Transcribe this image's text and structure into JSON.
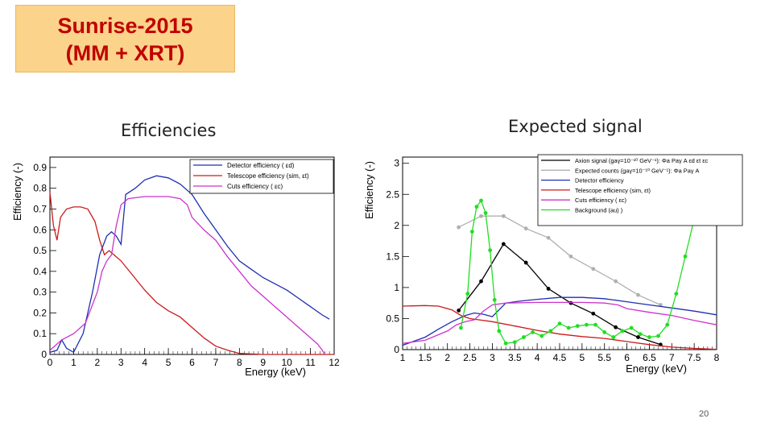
{
  "slide": {
    "title_line1": "Sunrise-2015",
    "title_line2": "(MM + XRT)",
    "caption_left": "Efficiencies",
    "caption_right": "Expected signal",
    "page_number": "20"
  },
  "chart_data": [
    {
      "type": "line",
      "ylabel": "Efficiency (-)",
      "xlabel": "Energy (keV)",
      "xlim": [
        0,
        12
      ],
      "ylim": [
        0,
        0.95
      ],
      "xticks": [
        "0",
        "1",
        "2",
        "3",
        "4",
        "5",
        "6",
        "7",
        "8",
        "9",
        "10",
        "11",
        "12"
      ],
      "yticks": [
        "0",
        "0.1",
        "0.2",
        "0.3",
        "0.4",
        "0.5",
        "0.6",
        "0.7",
        "0.8",
        "0.9"
      ],
      "legend_position": "top-right",
      "series": [
        {
          "name": "Detector efficiency ( εd)",
          "color": "#1f2fb0",
          "points": [
            [
              0,
              0.01
            ],
            [
              0.3,
              0.02
            ],
            [
              0.5,
              0.07
            ],
            [
              0.7,
              0.03
            ],
            [
              1.0,
              0.01
            ],
            [
              1.4,
              0.1
            ],
            [
              1.8,
              0.3
            ],
            [
              2.1,
              0.48
            ],
            [
              2.4,
              0.57
            ],
            [
              2.6,
              0.59
            ],
            [
              2.8,
              0.57
            ],
            [
              3.0,
              0.53
            ],
            [
              3.2,
              0.77
            ],
            [
              3.6,
              0.8
            ],
            [
              4.0,
              0.84
            ],
            [
              4.5,
              0.86
            ],
            [
              5.0,
              0.85
            ],
            [
              5.5,
              0.82
            ],
            [
              6.0,
              0.77
            ],
            [
              6.5,
              0.68
            ],
            [
              7.0,
              0.6
            ],
            [
              7.5,
              0.52
            ],
            [
              8.0,
              0.45
            ],
            [
              8.5,
              0.41
            ],
            [
              9.0,
              0.37
            ],
            [
              9.5,
              0.34
            ],
            [
              10.0,
              0.31
            ],
            [
              10.5,
              0.27
            ],
            [
              11.0,
              0.23
            ],
            [
              11.5,
              0.19
            ],
            [
              11.8,
              0.17
            ]
          ]
        },
        {
          "name": "Telescope efficiency (sim,  εt)",
          "color": "#cc1a1a",
          "points": [
            [
              0,
              0.78
            ],
            [
              0.15,
              0.62
            ],
            [
              0.3,
              0.55
            ],
            [
              0.45,
              0.66
            ],
            [
              0.7,
              0.7
            ],
            [
              1.0,
              0.71
            ],
            [
              1.3,
              0.71
            ],
            [
              1.6,
              0.7
            ],
            [
              1.9,
              0.64
            ],
            [
              2.1,
              0.55
            ],
            [
              2.3,
              0.48
            ],
            [
              2.5,
              0.5
            ],
            [
              2.7,
              0.48
            ],
            [
              3.0,
              0.45
            ],
            [
              3.5,
              0.38
            ],
            [
              4.0,
              0.31
            ],
            [
              4.5,
              0.25
            ],
            [
              5.0,
              0.21
            ],
            [
              5.5,
              0.18
            ],
            [
              6.0,
              0.13
            ],
            [
              6.5,
              0.08
            ],
            [
              7.0,
              0.04
            ],
            [
              7.5,
              0.02
            ],
            [
              8.0,
              0.005
            ],
            [
              9.0,
              0.0
            ],
            [
              12.0,
              0.0
            ]
          ]
        },
        {
          "name": "Cuts efficiency ( εc)",
          "color": "#cc33cc",
          "points": [
            [
              0,
              0.02
            ],
            [
              0.5,
              0.07
            ],
            [
              1.0,
              0.1
            ],
            [
              1.5,
              0.15
            ],
            [
              2.0,
              0.3
            ],
            [
              2.2,
              0.4
            ],
            [
              2.4,
              0.45
            ],
            [
              2.6,
              0.48
            ],
            [
              2.8,
              0.62
            ],
            [
              3.0,
              0.72
            ],
            [
              3.3,
              0.75
            ],
            [
              4.0,
              0.76
            ],
            [
              5.0,
              0.76
            ],
            [
              5.5,
              0.75
            ],
            [
              5.8,
              0.72
            ],
            [
              6.0,
              0.66
            ],
            [
              6.5,
              0.6
            ],
            [
              7.0,
              0.55
            ],
            [
              7.5,
              0.47
            ],
            [
              8.0,
              0.4
            ],
            [
              8.5,
              0.33
            ],
            [
              9.0,
              0.28
            ],
            [
              9.5,
              0.23
            ],
            [
              10.0,
              0.18
            ],
            [
              10.5,
              0.13
            ],
            [
              11.0,
              0.08
            ],
            [
              11.3,
              0.05
            ],
            [
              11.5,
              0.02
            ],
            [
              11.6,
              0.0
            ]
          ]
        }
      ]
    },
    {
      "type": "line",
      "ylabel": "Efficiency (-)",
      "xlabel": "Energy (keV)",
      "xlim": [
        1,
        8
      ],
      "ylim": [
        0,
        3.1
      ],
      "xticks": [
        "1",
        "1.5",
        "2",
        "2.5",
        "3",
        "3.5",
        "4",
        "4.5",
        "5",
        "5.5",
        "6",
        "6.5",
        "7",
        "7.5",
        "8"
      ],
      "yticks": [
        "0",
        "0.5",
        "1",
        "1.5",
        "2",
        "2.5",
        "3"
      ],
      "legend_position": "top-right",
      "series": [
        {
          "name": "Axion signal (gaγ=10⁻¹⁰ GeV⁻¹): Φa Paγ A εd εt εc",
          "color": "#000000",
          "markers": true,
          "points": [
            [
              2.25,
              0.63
            ],
            [
              2.75,
              1.1
            ],
            [
              3.25,
              1.7
            ],
            [
              3.75,
              1.4
            ],
            [
              4.25,
              0.98
            ],
            [
              4.75,
              0.75
            ],
            [
              5.25,
              0.58
            ],
            [
              5.75,
              0.36
            ],
            [
              6.25,
              0.2
            ],
            [
              6.75,
              0.08
            ]
          ]
        },
        {
          "name": "Expected counts (gaγ=10⁻¹⁰ GeV⁻¹): Φa Paγ A",
          "color": "#b0b0b0",
          "markers": true,
          "points": [
            [
              2.25,
              1.97
            ],
            [
              2.75,
              2.15
            ],
            [
              3.25,
              2.15
            ],
            [
              3.75,
              1.95
            ],
            [
              4.25,
              1.8
            ],
            [
              4.75,
              1.5
            ],
            [
              5.25,
              1.3
            ],
            [
              5.75,
              1.1
            ],
            [
              6.25,
              0.88
            ],
            [
              6.75,
              0.72
            ]
          ]
        },
        {
          "name": "Detector efficiency",
          "color": "#1f2fb0",
          "points": [
            [
              1.0,
              0.07
            ],
            [
              1.5,
              0.2
            ],
            [
              1.8,
              0.33
            ],
            [
              2.1,
              0.45
            ],
            [
              2.4,
              0.55
            ],
            [
              2.6,
              0.59
            ],
            [
              2.8,
              0.57
            ],
            [
              3.0,
              0.53
            ],
            [
              3.3,
              0.75
            ],
            [
              3.6,
              0.78
            ],
            [
              4.0,
              0.81
            ],
            [
              4.5,
              0.84
            ],
            [
              5.0,
              0.84
            ],
            [
              5.5,
              0.82
            ],
            [
              6.0,
              0.77
            ],
            [
              6.5,
              0.72
            ],
            [
              7.0,
              0.67
            ],
            [
              7.5,
              0.62
            ],
            [
              8.0,
              0.56
            ]
          ]
        },
        {
          "name": "Telescope efficiency (sim,   εt)",
          "color": "#cc1a1a",
          "points": [
            [
              1.0,
              0.7
            ],
            [
              1.5,
              0.71
            ],
            [
              1.8,
              0.7
            ],
            [
              2.1,
              0.64
            ],
            [
              2.3,
              0.55
            ],
            [
              2.5,
              0.5
            ],
            [
              2.7,
              0.48
            ],
            [
              3.0,
              0.45
            ],
            [
              3.5,
              0.38
            ],
            [
              4.0,
              0.31
            ],
            [
              4.5,
              0.25
            ],
            [
              5.0,
              0.21
            ],
            [
              5.5,
              0.18
            ],
            [
              6.0,
              0.13
            ],
            [
              6.5,
              0.08
            ],
            [
              7.0,
              0.04
            ],
            [
              7.5,
              0.02
            ],
            [
              8.0,
              0.005
            ]
          ]
        },
        {
          "name": "Cuts efficiency ( εc)",
          "color": "#cc33cc",
          "points": [
            [
              1.0,
              0.1
            ],
            [
              1.5,
              0.15
            ],
            [
              2.0,
              0.3
            ],
            [
              2.2,
              0.4
            ],
            [
              2.4,
              0.45
            ],
            [
              2.6,
              0.48
            ],
            [
              2.8,
              0.62
            ],
            [
              3.0,
              0.72
            ],
            [
              3.3,
              0.75
            ],
            [
              4.0,
              0.76
            ],
            [
              5.0,
              0.76
            ],
            [
              5.5,
              0.75
            ],
            [
              5.8,
              0.72
            ],
            [
              6.0,
              0.66
            ],
            [
              6.5,
              0.6
            ],
            [
              7.0,
              0.55
            ],
            [
              7.5,
              0.47
            ],
            [
              8.0,
              0.4
            ]
          ]
        },
        {
          "name": "Background (au) )",
          "color": "#22dd22",
          "markers": true,
          "points": [
            [
              2.3,
              0.35
            ],
            [
              2.45,
              0.9
            ],
            [
              2.55,
              1.9
            ],
            [
              2.65,
              2.3
            ],
            [
              2.75,
              2.4
            ],
            [
              2.85,
              2.2
            ],
            [
              2.95,
              1.6
            ],
            [
              3.05,
              0.8
            ],
            [
              3.15,
              0.3
            ],
            [
              3.3,
              0.1
            ],
            [
              3.5,
              0.12
            ],
            [
              3.7,
              0.2
            ],
            [
              3.9,
              0.28
            ],
            [
              4.1,
              0.22
            ],
            [
              4.3,
              0.3
            ],
            [
              4.5,
              0.42
            ],
            [
              4.7,
              0.35
            ],
            [
              4.9,
              0.38
            ],
            [
              5.1,
              0.4
            ],
            [
              5.3,
              0.4
            ],
            [
              5.5,
              0.28
            ],
            [
              5.7,
              0.2
            ],
            [
              5.9,
              0.3
            ],
            [
              6.1,
              0.35
            ],
            [
              6.3,
              0.25
            ],
            [
              6.5,
              0.2
            ],
            [
              6.7,
              0.22
            ],
            [
              6.9,
              0.4
            ],
            [
              7.1,
              0.9
            ],
            [
              7.3,
              1.5
            ],
            [
              7.5,
              2.1
            ],
            [
              7.7,
              2.6
            ],
            [
              7.85,
              3.1
            ]
          ]
        }
      ]
    }
  ]
}
